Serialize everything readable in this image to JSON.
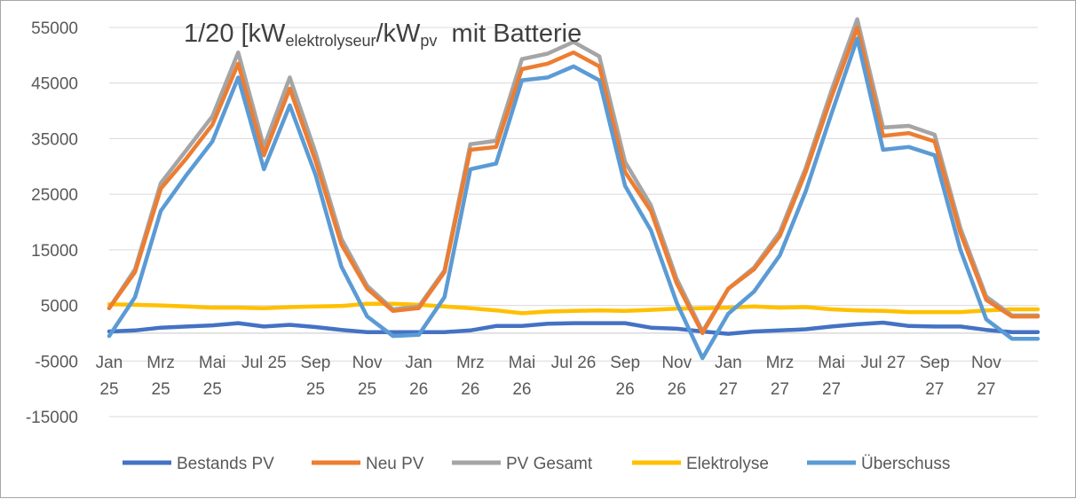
{
  "chart_data": {
    "type": "line",
    "title": {
      "prefix": "1/20 [kW",
      "sub1": "elektrolyseur",
      "mid": "/kW",
      "sub2": "pv",
      "suffix": "  mit Batterie"
    },
    "ylim": [
      -15000,
      55000
    ],
    "yticks": [
      55000,
      45000,
      35000,
      25000,
      15000,
      5000,
      -5000,
      -15000
    ],
    "grid": true,
    "legend_position": "bottom",
    "x_tick_labels": [
      {
        "i": 0,
        "l1": "Jan",
        "l2": "25"
      },
      {
        "i": 2,
        "l1": "Mrz",
        "l2": "25"
      },
      {
        "i": 4,
        "l1": "Mai",
        "l2": "25"
      },
      {
        "i": 6,
        "l1": "Jul 25",
        "l2": ""
      },
      {
        "i": 8,
        "l1": "Sep",
        "l2": "25"
      },
      {
        "i": 10,
        "l1": "Nov",
        "l2": "25"
      },
      {
        "i": 12,
        "l1": "Jan",
        "l2": "26"
      },
      {
        "i": 14,
        "l1": "Mrz",
        "l2": "26"
      },
      {
        "i": 16,
        "l1": "Mai",
        "l2": "26"
      },
      {
        "i": 18,
        "l1": "Jul 26",
        "l2": ""
      },
      {
        "i": 20,
        "l1": "Sep",
        "l2": "26"
      },
      {
        "i": 22,
        "l1": "Nov",
        "l2": "26"
      },
      {
        "i": 24,
        "l1": "Jan",
        "l2": "27"
      },
      {
        "i": 26,
        "l1": "Mrz",
        "l2": "27"
      },
      {
        "i": 28,
        "l1": "Mai",
        "l2": "27"
      },
      {
        "i": 30,
        "l1": "Jul 27",
        "l2": ""
      },
      {
        "i": 32,
        "l1": "Sep",
        "l2": "27"
      },
      {
        "i": 34,
        "l1": "Nov",
        "l2": "27"
      }
    ],
    "series": [
      {
        "name": "Bestands PV",
        "color": "#4472c4",
        "values": [
          300,
          500,
          1000,
          1200,
          1400,
          1800,
          1200,
          1500,
          1100,
          600,
          200,
          200,
          200,
          200,
          500,
          1300,
          1300,
          1700,
          1800,
          1800,
          1800,
          1000,
          800,
          300,
          -100,
          300,
          500,
          700,
          1200,
          1600,
          1900,
          1300,
          1200,
          1200,
          600,
          200,
          200
        ]
      },
      {
        "name": "Neu PV",
        "color": "#ed7d31",
        "values": [
          4500,
          11000,
          26000,
          31500,
          37500,
          48500,
          32000,
          44000,
          31000,
          16000,
          8000,
          4000,
          4500,
          11000,
          33000,
          33500,
          47500,
          48500,
          50500,
          48000,
          29000,
          22000,
          9000,
          0,
          8000,
          11500,
          17500,
          29000,
          42500,
          55000,
          35500,
          36000,
          34500,
          18000,
          6000,
          3000,
          3000
        ]
      },
      {
        "name": "PV Gesamt",
        "color": "#a5a5a5",
        "values": [
          4500,
          11500,
          27000,
          33000,
          39000,
          50500,
          33500,
          46000,
          32500,
          17000,
          8500,
          4300,
          4800,
          11300,
          34000,
          34600,
          49300,
          50300,
          52400,
          49800,
          30800,
          23000,
          9800,
          300,
          8000,
          11800,
          18200,
          29700,
          43700,
          56500,
          37000,
          37300,
          35700,
          18900,
          6600,
          3200,
          3200
        ]
      },
      {
        "name": "Elektrolyse",
        "color": "#ffc000",
        "values": [
          5200,
          5100,
          5000,
          4800,
          4600,
          4600,
          4500,
          4700,
          4800,
          4900,
          5300,
          5300,
          5100,
          4800,
          4500,
          4100,
          3600,
          3900,
          4000,
          4100,
          4000,
          4200,
          4400,
          4500,
          4600,
          4800,
          4600,
          4700,
          4300,
          4100,
          4000,
          3800,
          3800,
          3800,
          4100,
          4300,
          4300
        ]
      },
      {
        "name": "Überschuss",
        "color": "#5b9bd5",
        "values": [
          -500,
          6500,
          22000,
          28500,
          34500,
          46000,
          29500,
          41000,
          28500,
          12000,
          3000,
          -500,
          -300,
          6500,
          29500,
          30500,
          45500,
          46000,
          48000,
          45500,
          26500,
          18500,
          5500,
          -4500,
          3500,
          7500,
          14000,
          25500,
          39500,
          53000,
          33000,
          33500,
          32000,
          15000,
          2500,
          -1000,
          -1000
        ]
      }
    ]
  }
}
